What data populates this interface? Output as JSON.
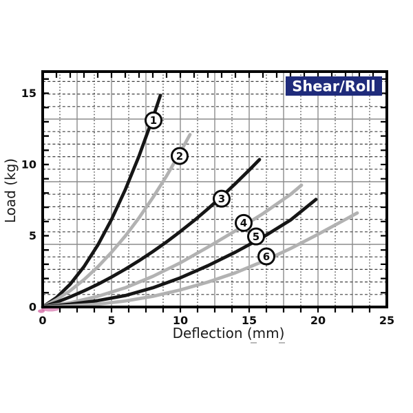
{
  "badge": {
    "label": "Shear/Roll"
  },
  "colors": {
    "badge_bg": "#1f2b7b",
    "badge_fg": "#ffffff",
    "black_curve": "#161616",
    "gray_curve": "#b2b2b2",
    "grid_dash": "#3f3f3f",
    "grid_solid": "#8c8c8c",
    "border": "#000000",
    "tick": "#000000",
    "origin_artifact": "#c43a87",
    "artifact_dash": "#8a8a8a"
  },
  "chart_data": {
    "type": "line",
    "title_badge": "Shear/Roll",
    "xlabel": "Deflection (mm)",
    "ylabel": "Load (kg)",
    "xlim": [
      0,
      25
    ],
    "ylim": [
      0,
      16.5
    ],
    "x_ticks": [
      0,
      5,
      10,
      15,
      20,
      25
    ],
    "y_ticks": [
      0,
      5,
      10,
      15
    ],
    "grid": {
      "style": "dashed minor with solid major",
      "x_minor_step_mm": 1.25,
      "x_solid_step_mm": 2.5
    },
    "legend_position": "none",
    "series": [
      {
        "name": "1",
        "color_role": "black",
        "marker_label": "1",
        "marker_at": [
          8.05,
          13.1
        ],
        "points": [
          [
            0,
            0
          ],
          [
            1,
            0.66
          ],
          [
            2,
            1.6
          ],
          [
            3,
            2.83
          ],
          [
            4,
            4.34
          ],
          [
            5,
            6.14
          ],
          [
            6,
            8.23
          ],
          [
            7,
            10.6
          ],
          [
            8,
            13.26
          ],
          [
            8.55,
            14.85
          ]
        ]
      },
      {
        "name": "2",
        "color_role": "gray",
        "marker_label": "2",
        "marker_at": [
          9.95,
          10.6
        ],
        "points": [
          [
            0,
            0
          ],
          [
            1,
            0.51
          ],
          [
            2,
            1.15
          ],
          [
            3,
            1.92
          ],
          [
            4,
            2.81
          ],
          [
            5,
            3.84
          ],
          [
            6,
            4.98
          ],
          [
            7,
            6.26
          ],
          [
            8,
            7.67
          ],
          [
            9,
            9.2
          ],
          [
            10,
            10.87
          ],
          [
            10.7,
            12.1
          ]
        ]
      },
      {
        "name": "3",
        "color_role": "black",
        "marker_label": "3",
        "marker_at": [
          13.0,
          7.6
        ],
        "points": [
          [
            0,
            0
          ],
          [
            1,
            0.33
          ],
          [
            2,
            0.71
          ],
          [
            3,
            1.13
          ],
          [
            4,
            1.59
          ],
          [
            5,
            2.1
          ],
          [
            6,
            2.65
          ],
          [
            7,
            3.25
          ],
          [
            8,
            3.89
          ],
          [
            9,
            4.57
          ],
          [
            10,
            5.3
          ],
          [
            11,
            6.07
          ],
          [
            12,
            6.89
          ],
          [
            13,
            7.75
          ],
          [
            14,
            8.66
          ],
          [
            15,
            9.61
          ],
          [
            15.75,
            10.35
          ]
        ]
      },
      {
        "name": "4",
        "color_role": "gray",
        "marker_label": "4",
        "marker_at": [
          14.6,
          5.9
        ],
        "points": [
          [
            0,
            0
          ],
          [
            2,
            0.3
          ],
          [
            4,
            0.75
          ],
          [
            6,
            1.35
          ],
          [
            8,
            2.15
          ],
          [
            10,
            3.1
          ],
          [
            12,
            4.2
          ],
          [
            14,
            5.35
          ],
          [
            16,
            6.55
          ],
          [
            18,
            7.9
          ],
          [
            18.8,
            8.55
          ]
        ]
      },
      {
        "name": "5",
        "color_role": "black",
        "marker_label": "5",
        "marker_at": [
          15.5,
          4.95
        ],
        "points": [
          [
            0,
            0
          ],
          [
            2,
            0.2
          ],
          [
            4,
            0.45
          ],
          [
            6,
            0.8
          ],
          [
            8,
            1.35
          ],
          [
            10,
            2.05
          ],
          [
            12,
            2.9
          ],
          [
            14,
            3.85
          ],
          [
            16,
            4.9
          ],
          [
            18,
            6.1
          ],
          [
            19.85,
            7.55
          ]
        ]
      },
      {
        "name": "6",
        "color_role": "gray",
        "marker_label": "6",
        "marker_at": [
          16.25,
          3.55
        ],
        "points": [
          [
            0,
            0
          ],
          [
            2,
            0.08
          ],
          [
            4,
            0.2
          ],
          [
            6,
            0.42
          ],
          [
            8,
            0.75
          ],
          [
            10,
            1.2
          ],
          [
            12,
            1.75
          ],
          [
            14,
            2.4
          ],
          [
            16,
            3.2
          ],
          [
            18,
            4.1
          ],
          [
            20,
            5.1
          ],
          [
            22,
            6.15
          ],
          [
            22.85,
            6.6
          ]
        ]
      }
    ]
  }
}
